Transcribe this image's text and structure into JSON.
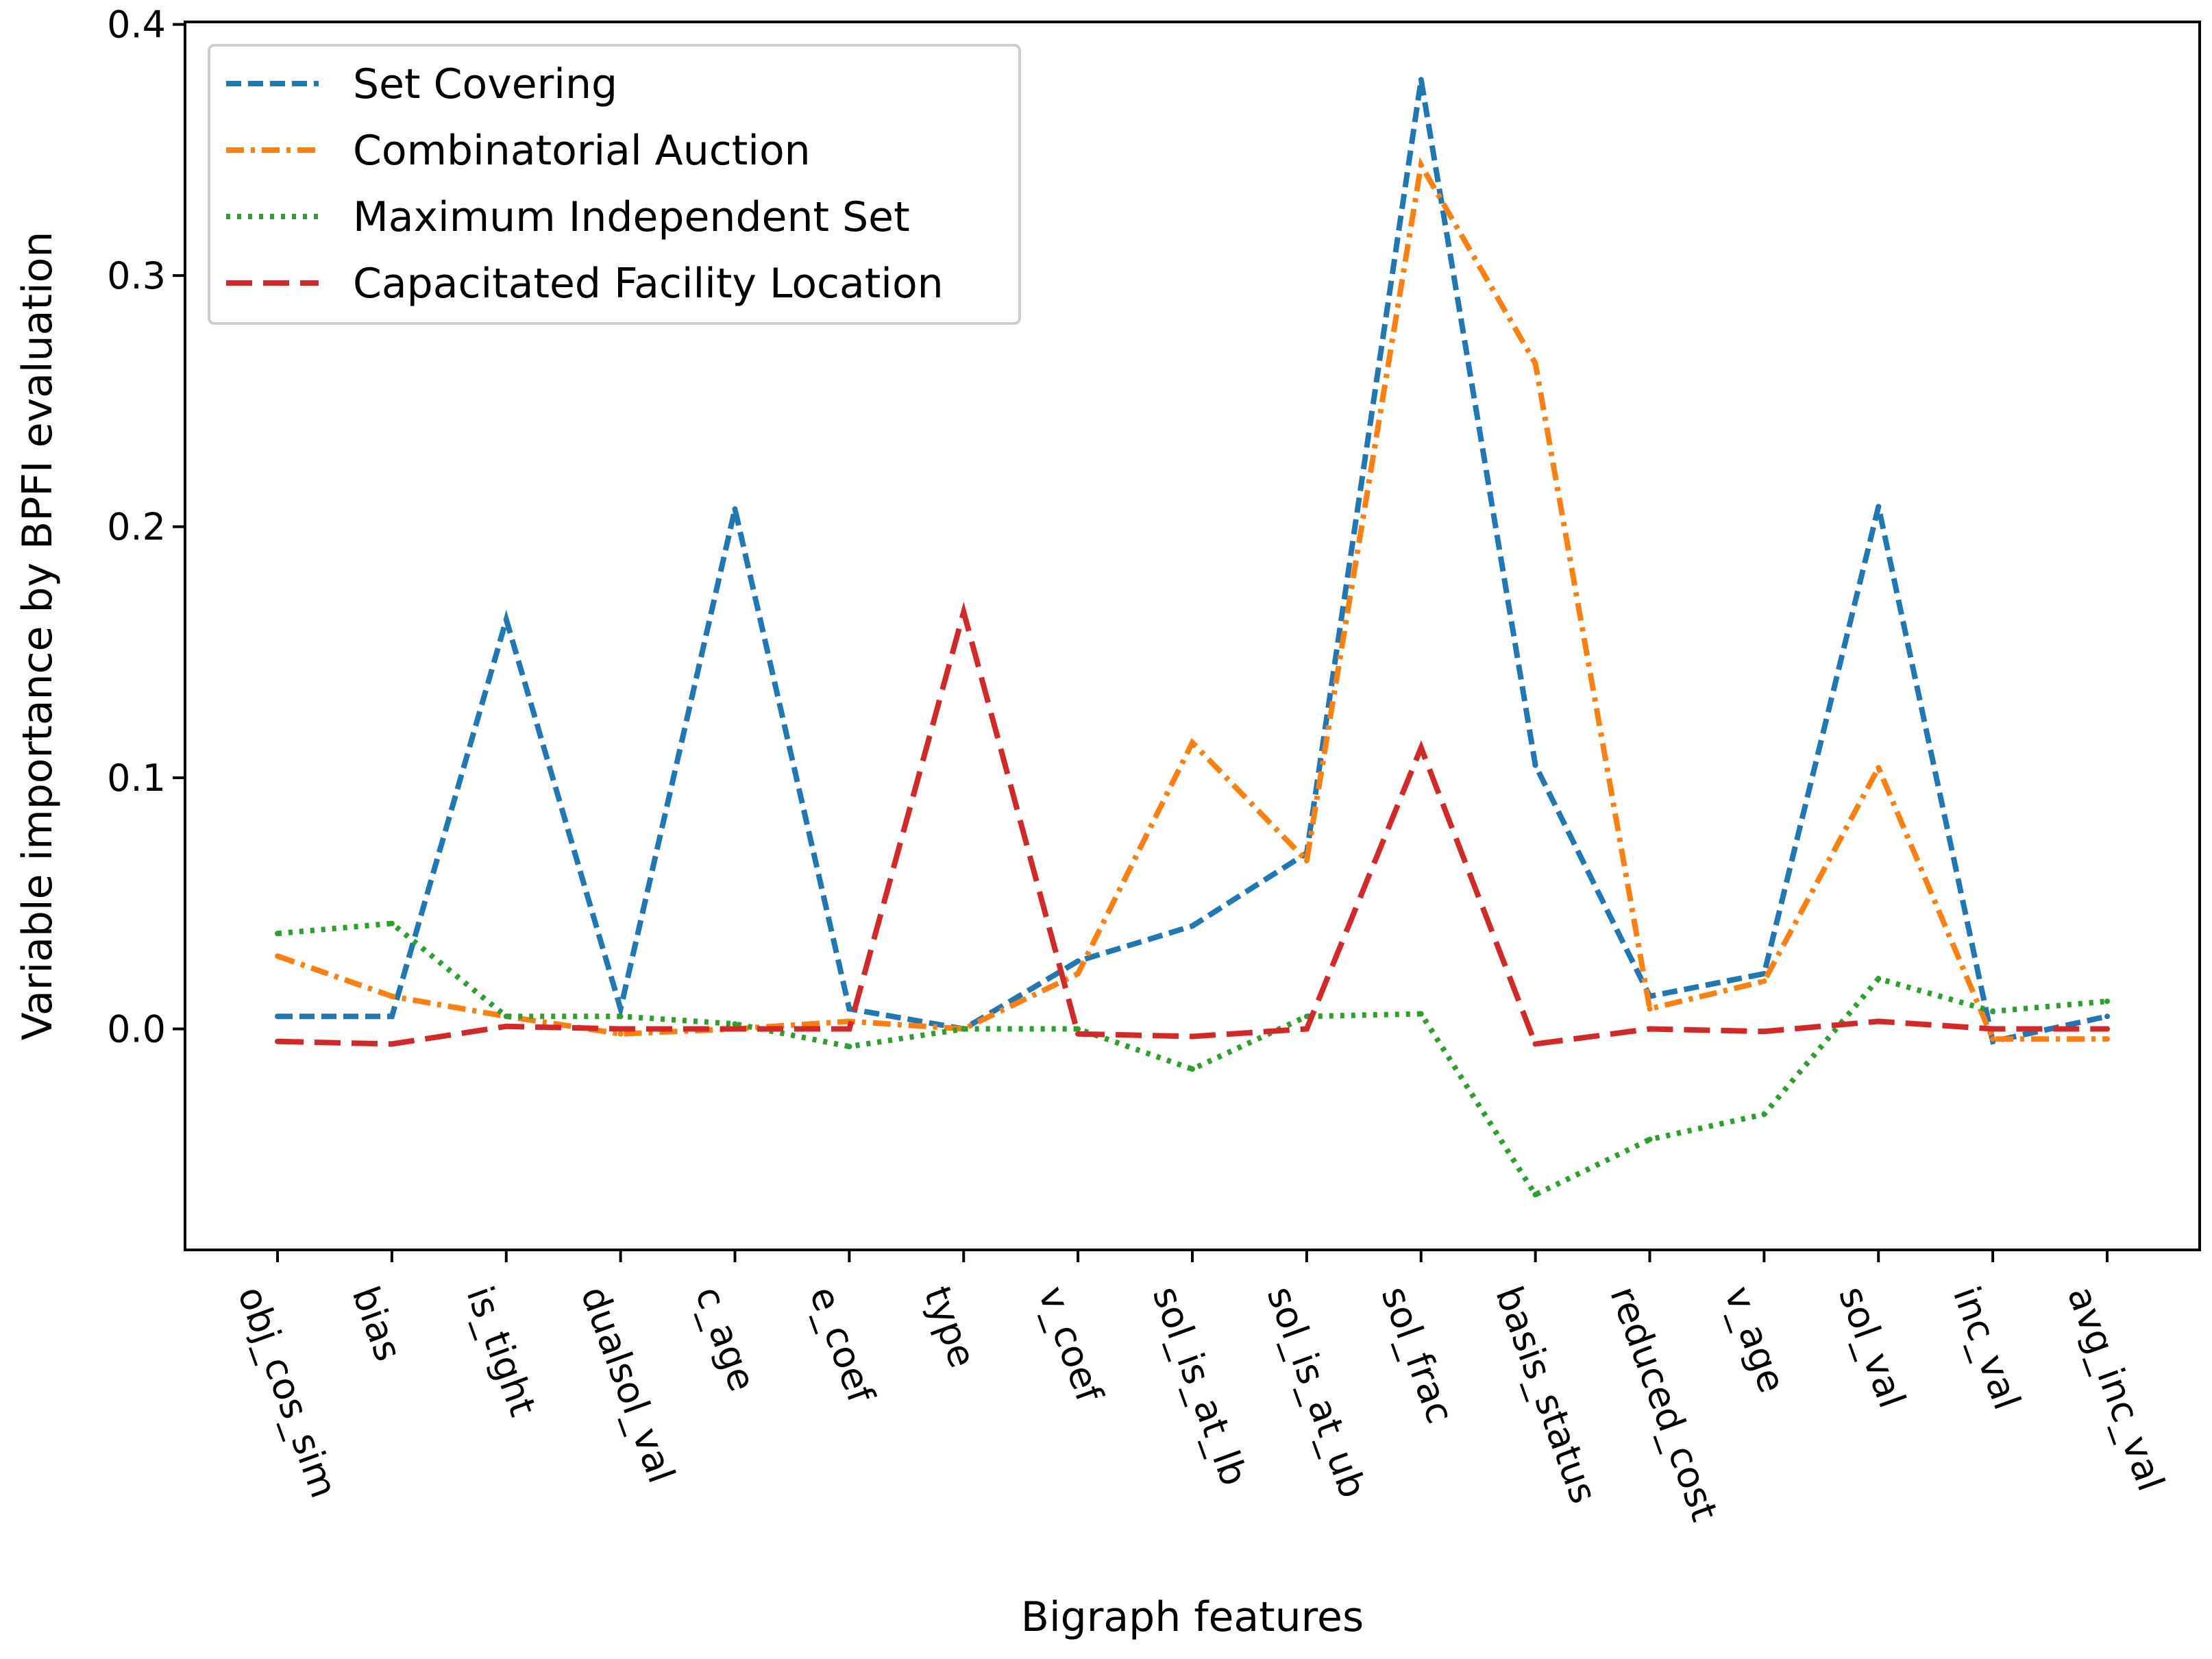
{
  "chart_data": {
    "type": "line",
    "title": "",
    "xlabel": "Bigraph features",
    "ylabel": "Variable importance by BPFI evaluation",
    "categories": [
      "obj_cos_sim",
      "bias",
      "is_tight",
      "dualsol_val",
      "c_age",
      "e_coef",
      "type",
      "v_coef",
      "sol_is_at_lb",
      "sol_is_at_ub",
      "sol_frac",
      "basis_status",
      "reduced_cost",
      "v_age",
      "sol_val",
      "inc_val",
      "avg_inc_val"
    ],
    "ylim": [
      -0.088,
      0.401
    ],
    "yticks": [
      0.0,
      0.1,
      0.2,
      0.3,
      0.4
    ],
    "ytick_labels": [
      "0.0",
      "0.1",
      "0.2",
      "0.3",
      "0.4"
    ],
    "grid": false,
    "legend_position": "top-left",
    "series": [
      {
        "name": "Set Covering",
        "color": "#1f77b4",
        "linestyle": "dashed",
        "values": [
          0.005,
          0.005,
          0.163,
          0.008,
          0.207,
          0.008,
          0.0,
          0.027,
          0.041,
          0.07,
          0.378,
          0.105,
          0.013,
          0.022,
          0.208,
          -0.005,
          0.005
        ]
      },
      {
        "name": "Combinatorial Auction",
        "color": "#ff7f0e",
        "linestyle": "dashdot",
        "values": [
          0.029,
          0.013,
          0.005,
          -0.002,
          0.0,
          0.003,
          0.0,
          0.022,
          0.114,
          0.067,
          0.344,
          0.265,
          0.008,
          0.019,
          0.104,
          -0.004,
          -0.004
        ]
      },
      {
        "name": "Maximum Independent Set",
        "color": "#2ca02c",
        "linestyle": "dotted",
        "values": [
          0.038,
          0.042,
          0.005,
          0.005,
          0.002,
          -0.007,
          0.0,
          0.0,
          -0.016,
          0.005,
          0.006,
          -0.066,
          -0.044,
          -0.034,
          0.02,
          0.007,
          0.011
        ]
      },
      {
        "name": "Capacitated Facility Location",
        "color": "#d62728",
        "linestyle": "longdash",
        "values": [
          -0.005,
          -0.006,
          0.001,
          0.0,
          0.0,
          0.0,
          0.166,
          -0.002,
          -0.003,
          0.0,
          0.112,
          -0.006,
          0.0,
          -0.001,
          0.003,
          0.0,
          0.0
        ]
      }
    ]
  }
}
